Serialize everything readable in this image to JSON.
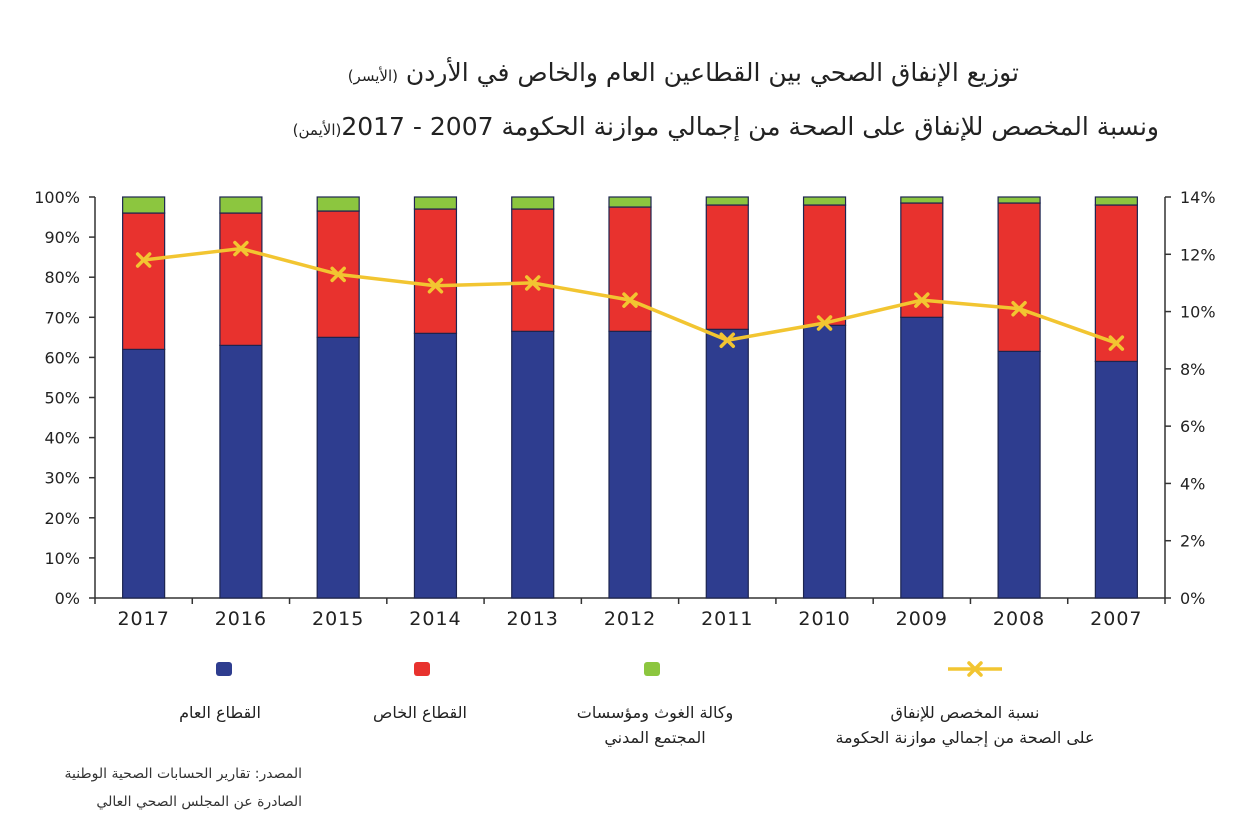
{
  "title": {
    "line1": "توزيع الإنفاق الصحي بين القطاعين العام والخاص في الأردن",
    "line1_note": "(الأيسر)",
    "line2": "ونسبة المخصص للإنفاق على الصحة من إجمالي موازنة الحكومة 2007 - 2017",
    "line2_note": "(الأيمن)"
  },
  "legend": {
    "public": "القطاع العام",
    "private": "القطاع الخاص",
    "unrwa_line1": "وكالة الغوث ومؤسسات",
    "unrwa_line2": "المجتمع المدني",
    "share_line1": "نسبة المخصص للإنفاق",
    "share_line2": "على الصحة من إجمالي موازنة الحكومة"
  },
  "source": {
    "line1": "المصدر: تقارير الحسابات الصحية الوطنية",
    "line2": "الصادرة عن المجلس الصحي العالي"
  },
  "colors": {
    "public": "#2e3d8f",
    "private": "#e8322e",
    "unrwa": "#8cc63f",
    "line": "#f2c531",
    "marker": "#f2c531",
    "axis": "#333333"
  },
  "chart_data": {
    "type": "bar",
    "stacked": true,
    "categories": [
      "2017",
      "2016",
      "2015",
      "2014",
      "2013",
      "2012",
      "2011",
      "2010",
      "2009",
      "2008",
      "2007"
    ],
    "series": [
      {
        "name": "القطاع العام",
        "values": [
          62,
          63,
          65,
          66,
          66.5,
          66.5,
          67,
          68,
          70,
          61.5,
          59
        ]
      },
      {
        "name": "القطاع الخاص",
        "values": [
          34,
          33,
          31.5,
          31,
          30.5,
          31,
          31,
          30,
          28.5,
          37,
          39
        ]
      },
      {
        "name": "وكالة الغوث ومؤسسات المجتمع المدني",
        "values": [
          4,
          4,
          3.5,
          3,
          3,
          2.5,
          2,
          2,
          1.5,
          1.5,
          2
        ]
      }
    ],
    "line_series": {
      "name": "نسبة المخصص للإنفاق على الصحة من إجمالي موازنة الحكومة",
      "values": [
        11.8,
        12.2,
        11.3,
        10.9,
        11.0,
        10.4,
        9.0,
        9.6,
        10.4,
        10.1,
        8.9
      ]
    },
    "left_axis": {
      "ylim": [
        0,
        100
      ],
      "ticks": [
        "0%",
        "10%",
        "20%",
        "30%",
        "40%",
        "50%",
        "60%",
        "70%",
        "80%",
        "90%",
        "100%"
      ]
    },
    "right_axis": {
      "ylim": [
        0,
        14
      ],
      "ticks": [
        "0%",
        "2%",
        "4%",
        "6%",
        "8%",
        "10%",
        "12%",
        "14%"
      ]
    }
  }
}
